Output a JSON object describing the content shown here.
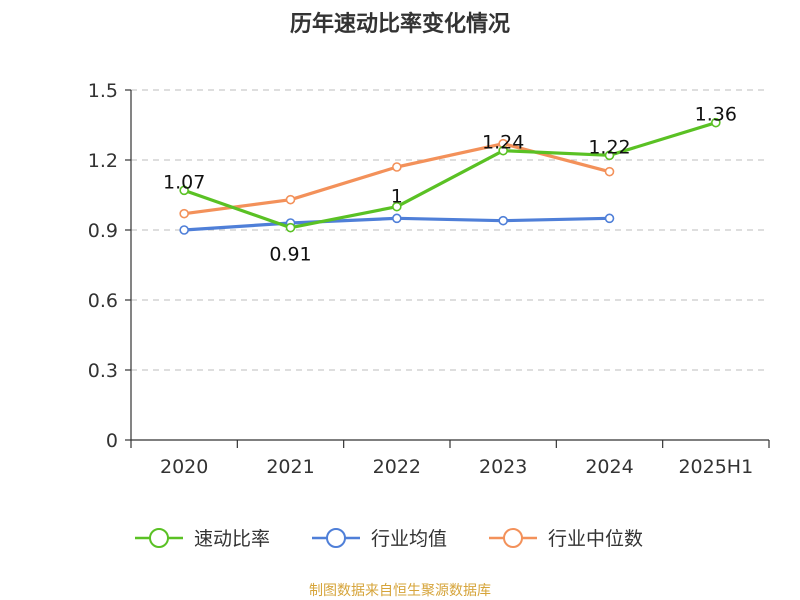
{
  "chart_data": {
    "type": "line",
    "title": "历年速动比率变化情况",
    "categories": [
      "2020",
      "2021",
      "2022",
      "2023",
      "2024",
      "2025H1"
    ],
    "ylim": [
      0,
      1.5
    ],
    "yticks": [
      "0",
      "0.3",
      "0.6",
      "0.9",
      "1.2",
      "1.5"
    ],
    "grid": true,
    "legend_position": "bottom",
    "series": [
      {
        "name": "速动比率",
        "color": "#5ac124",
        "values": [
          1.07,
          0.91,
          1,
          1.24,
          1.22,
          1.36
        ],
        "labels": [
          "1.07",
          "0.91",
          "1",
          "1.24",
          "1.22",
          "1.36"
        ]
      },
      {
        "name": "行业均值",
        "color": "#4f7fd8",
        "values": [
          0.9,
          0.93,
          0.95,
          0.94,
          0.95,
          null
        ]
      },
      {
        "name": "行业中位数",
        "color": "#f3915a",
        "values": [
          0.97,
          1.03,
          1.17,
          1.27,
          1.15,
          null
        ]
      }
    ],
    "source": "制图数据来自恒生聚源数据库"
  }
}
